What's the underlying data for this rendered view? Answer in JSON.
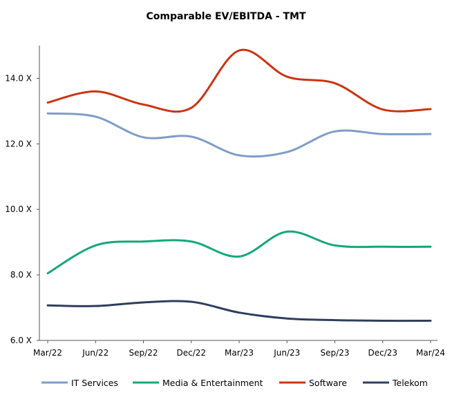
{
  "chart_data": {
    "type": "line",
    "title": "Comparable EV/EBITDA - TMT",
    "xlabel": "",
    "ylabel": "",
    "categories": [
      "Mar/22",
      "Jun/22",
      "Sep/22",
      "Dec/22",
      "Mar/23",
      "Jun/23",
      "Sep/23",
      "Dec/23",
      "Mar/24"
    ],
    "ylim": [
      6.0,
      15.0
    ],
    "yticks": [
      6.0,
      8.0,
      10.0,
      12.0,
      14.0
    ],
    "ytick_labels": [
      "6.0 X",
      "8.0 X",
      "10.0 X",
      "12.0 X",
      "14.0 X"
    ],
    "grid": false,
    "legend_position": "bottom",
    "series": [
      {
        "name": "IT Services",
        "color": "#7F9CC8",
        "values": [
          12.93,
          12.83,
          12.2,
          12.22,
          11.65,
          11.75,
          12.38,
          12.3,
          12.3
        ]
      },
      {
        "name": "Media & Entertainment",
        "color": "#14A876",
        "values": [
          8.05,
          8.9,
          9.02,
          9.02,
          8.56,
          9.32,
          8.9,
          8.86,
          8.86
        ]
      },
      {
        "name": "Software",
        "color": "#CC3311",
        "values": [
          13.26,
          13.6,
          13.2,
          13.1,
          14.85,
          14.05,
          13.85,
          13.05,
          13.06
        ]
      },
      {
        "name": "Telekom",
        "color": "#2E3E5C",
        "values": [
          7.07,
          7.05,
          7.16,
          7.18,
          6.85,
          6.67,
          6.62,
          6.6,
          6.6
        ]
      }
    ]
  }
}
